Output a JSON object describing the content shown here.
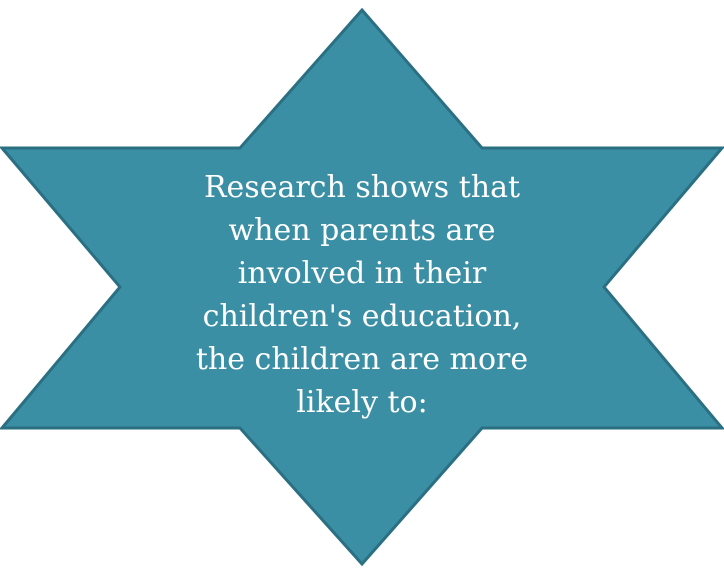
{
  "star": {
    "fill_color": "#3b8fa5",
    "stroke_color": "#2a6f82",
    "text_color": "#ffffff",
    "lines": [
      "Research shows that",
      "when parents are",
      "involved in their",
      "children's education,",
      "the children are more",
      "likely to:"
    ]
  }
}
